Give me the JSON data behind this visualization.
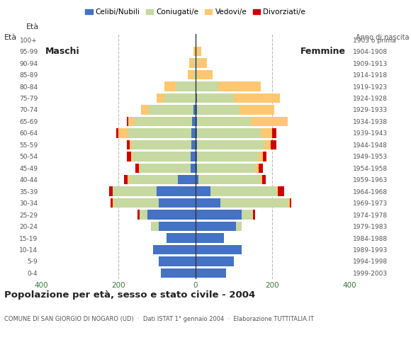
{
  "age_groups": [
    "0-4",
    "5-9",
    "10-14",
    "15-19",
    "20-24",
    "25-29",
    "30-34",
    "35-39",
    "40-44",
    "45-49",
    "50-54",
    "55-59",
    "60-64",
    "65-69",
    "70-74",
    "75-79",
    "80-84",
    "85-89",
    "90-94",
    "95-99",
    "100+"
  ],
  "birth_years": [
    "1999-2003",
    "1994-1998",
    "1989-1993",
    "1984-1988",
    "1979-1983",
    "1974-1978",
    "1969-1973",
    "1964-1968",
    "1959-1963",
    "1954-1958",
    "1949-1953",
    "1944-1948",
    "1939-1943",
    "1934-1938",
    "1929-1933",
    "1924-1928",
    "1919-1923",
    "1914-1918",
    "1909-1913",
    "1904-1908",
    "1903 o prima"
  ],
  "males": {
    "celibinubili": [
      90,
      95,
      110,
      75,
      95,
      125,
      95,
      100,
      45,
      12,
      12,
      10,
      10,
      8,
      5,
      0,
      0,
      0,
      0,
      0,
      0
    ],
    "coniugati": [
      0,
      0,
      0,
      0,
      20,
      20,
      115,
      115,
      125,
      130,
      150,
      155,
      165,
      150,
      115,
      80,
      50,
      5,
      5,
      0,
      0
    ],
    "vedovi": [
      0,
      0,
      0,
      0,
      0,
      0,
      5,
      0,
      5,
      5,
      5,
      5,
      25,
      15,
      20,
      20,
      30,
      15,
      10,
      5,
      0
    ],
    "divorziati": [
      0,
      0,
      0,
      0,
      0,
      5,
      5,
      8,
      10,
      8,
      10,
      8,
      5,
      5,
      0,
      0,
      0,
      0,
      0,
      0,
      0
    ]
  },
  "females": {
    "celibenubili": [
      80,
      100,
      120,
      75,
      105,
      120,
      65,
      40,
      8,
      5,
      5,
      5,
      5,
      5,
      5,
      5,
      0,
      0,
      0,
      0,
      0
    ],
    "coniugate": [
      0,
      0,
      0,
      0,
      15,
      30,
      175,
      170,
      160,
      150,
      160,
      175,
      165,
      140,
      110,
      95,
      60,
      5,
      5,
      0,
      0
    ],
    "vedove": [
      0,
      0,
      0,
      0,
      0,
      0,
      5,
      5,
      5,
      10,
      10,
      15,
      30,
      95,
      90,
      120,
      110,
      40,
      25,
      15,
      0
    ],
    "divorziate": [
      0,
      0,
      0,
      0,
      0,
      5,
      5,
      15,
      10,
      10,
      10,
      15,
      10,
      0,
      0,
      0,
      0,
      0,
      0,
      0,
      0
    ]
  },
  "colors": {
    "celibinubili": "#4472c4",
    "coniugati": "#c5d9a0",
    "vedovi": "#ffc771",
    "divorziati": "#cc0000"
  },
  "xlim": 400,
  "title": "Popolazione per età, sesso e stato civile - 2004",
  "subtitle": "COMUNE DI SAN GIORGIO DI NOGARO (UD)  ·  Dati ISTAT 1° gennaio 2004  ·  Elaborazione TUTTITALIA.IT",
  "legend_labels": [
    "Celibi/Nubili",
    "Coniugati/e",
    "Vedovi/e",
    "Divorziati/e"
  ],
  "background_color": "#ffffff",
  "grid_color": "#bbbbbb",
  "ylabel_left": "Età",
  "ylabel_right": "Anno di nascita"
}
